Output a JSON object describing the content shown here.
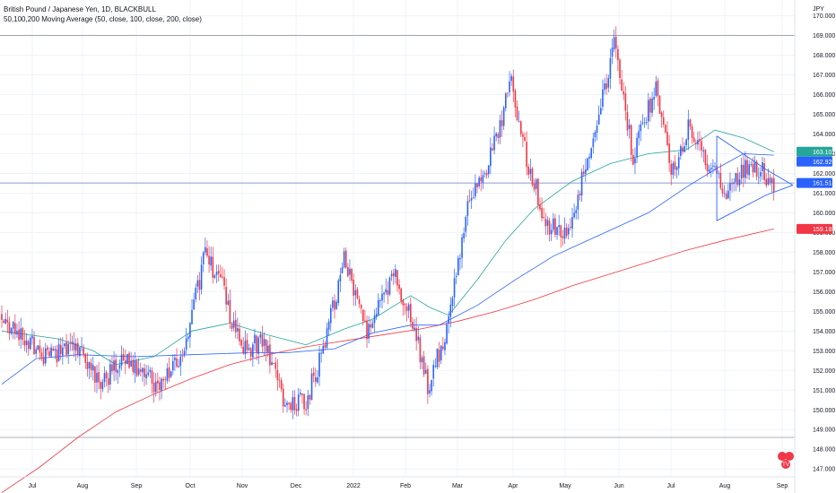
{
  "legend": {
    "line1": "British Pound / Japanese Yen, 1D, BLACKBULL",
    "line2": "50,100,200 Moving Average (50, close, 100, close, 200, close)"
  },
  "chart_data": {
    "type": "candlestick",
    "currency_label": "JPY",
    "y_ticks": [
      147,
      148,
      149,
      150,
      151,
      152,
      153,
      154,
      155,
      156,
      157,
      158,
      159,
      160,
      161,
      162,
      163,
      164,
      165,
      166,
      167,
      168,
      169,
      170
    ],
    "ylim": [
      146.6,
      170.8
    ],
    "x_labels": [
      "Jul",
      "Aug",
      "Sep",
      "Oct",
      "Nov",
      "Dec",
      "2022",
      "Feb",
      "Mar",
      "Apr",
      "May",
      "Jun",
      "Jul",
      "Aug",
      "Sep"
    ],
    "badges": [
      {
        "value": "163.101",
        "color": "#26a69a",
        "y": 163.101
      },
      {
        "value": "162.925",
        "color": "#2962ff",
        "y": 162.925
      },
      {
        "value": "161.514",
        "color": "#2962ff",
        "y": 161.514
      },
      {
        "value": "159.182",
        "color": "#f23645",
        "y": 159.182
      }
    ],
    "anchors": [
      [
        0,
        154.8
      ],
      [
        12,
        153.5
      ],
      [
        25,
        152.6
      ],
      [
        38,
        153.4
      ],
      [
        52,
        151.2
      ],
      [
        64,
        152.6
      ],
      [
        74,
        151.8
      ],
      [
        84,
        151.2
      ],
      [
        96,
        153.0
      ],
      [
        107,
        157.9
      ],
      [
        116,
        156.2
      ],
      [
        126,
        153.0
      ],
      [
        138,
        153.6
      ],
      [
        148,
        150.6
      ],
      [
        160,
        150.4
      ],
      [
        170,
        153.4
      ],
      [
        180,
        157.6
      ],
      [
        192,
        154.0
      ],
      [
        206,
        156.9
      ],
      [
        214,
        155.2
      ],
      [
        224,
        151.2
      ],
      [
        234,
        154.0
      ],
      [
        246,
        160.6
      ],
      [
        256,
        162.5
      ],
      [
        268,
        166.6
      ],
      [
        276,
        162.8
      ],
      [
        286,
        159.5
      ],
      [
        298,
        159.2
      ],
      [
        312,
        164.0
      ],
      [
        322,
        168.4
      ],
      [
        332,
        162.8
      ],
      [
        344,
        166.4
      ],
      [
        352,
        162.1
      ],
      [
        362,
        164.5
      ],
      [
        368,
        163.0
      ],
      [
        380,
        161.0
      ],
      [
        394,
        162.6
      ],
      [
        406,
        161.5
      ]
    ],
    "ma50": [
      [
        0,
        154.0
      ],
      [
        30,
        153.6
      ],
      [
        48,
        153.0
      ],
      [
        60,
        152.3
      ],
      [
        80,
        152.7
      ],
      [
        100,
        154.0
      ],
      [
        120,
        154.4
      ],
      [
        140,
        153.8
      ],
      [
        160,
        153.3
      ],
      [
        180,
        154.1
      ],
      [
        195,
        154.6
      ],
      [
        215,
        155.8
      ],
      [
        225,
        155.2
      ],
      [
        235,
        154.8
      ],
      [
        250,
        156.6
      ],
      [
        265,
        158.6
      ],
      [
        280,
        160.2
      ],
      [
        300,
        161.6
      ],
      [
        320,
        162.5
      ],
      [
        340,
        163.0
      ],
      [
        360,
        163.2
      ],
      [
        375,
        164.2
      ],
      [
        390,
        163.8
      ],
      [
        406,
        163.1
      ]
    ],
    "ma100": [
      [
        0,
        151.3
      ],
      [
        18,
        152.6
      ],
      [
        40,
        152.8
      ],
      [
        70,
        152.7
      ],
      [
        100,
        152.8
      ],
      [
        130,
        152.9
      ],
      [
        150,
        152.9
      ],
      [
        175,
        153.1
      ],
      [
        195,
        153.9
      ],
      [
        215,
        154.3
      ],
      [
        230,
        154.3
      ],
      [
        250,
        155.3
      ],
      [
        270,
        156.6
      ],
      [
        290,
        157.8
      ],
      [
        315,
        158.9
      ],
      [
        340,
        160.0
      ],
      [
        360,
        161.3
      ],
      [
        375,
        162.2
      ],
      [
        390,
        163.0
      ],
      [
        406,
        162.925
      ]
    ],
    "ma200": [
      [
        0,
        145.8
      ],
      [
        20,
        147.1
      ],
      [
        40,
        148.6
      ],
      [
        60,
        149.9
      ],
      [
        80,
        150.8
      ],
      [
        100,
        151.6
      ],
      [
        120,
        152.3
      ],
      [
        140,
        152.8
      ],
      [
        160,
        153.2
      ],
      [
        180,
        153.5
      ],
      [
        200,
        153.8
      ],
      [
        220,
        154.1
      ],
      [
        240,
        154.5
      ],
      [
        260,
        155.0
      ],
      [
        280,
        155.6
      ],
      [
        300,
        156.3
      ],
      [
        320,
        156.9
      ],
      [
        340,
        157.5
      ],
      [
        360,
        158.1
      ],
      [
        380,
        158.6
      ],
      [
        406,
        159.182
      ]
    ],
    "horizontal_lines": [
      169.0,
      161.514,
      148.6
    ],
    "triangle": {
      "upper": [
        [
          376,
          163.9
        ],
        [
          402,
          162.2
        ],
        [
          416,
          161.4
        ]
      ],
      "lower": [
        [
          376,
          159.6
        ],
        [
          402,
          160.9
        ],
        [
          416,
          161.4
        ]
      ],
      "left_edge": [
        [
          376,
          163.9
        ],
        [
          376,
          159.6
        ]
      ]
    }
  },
  "watermark": "TV"
}
